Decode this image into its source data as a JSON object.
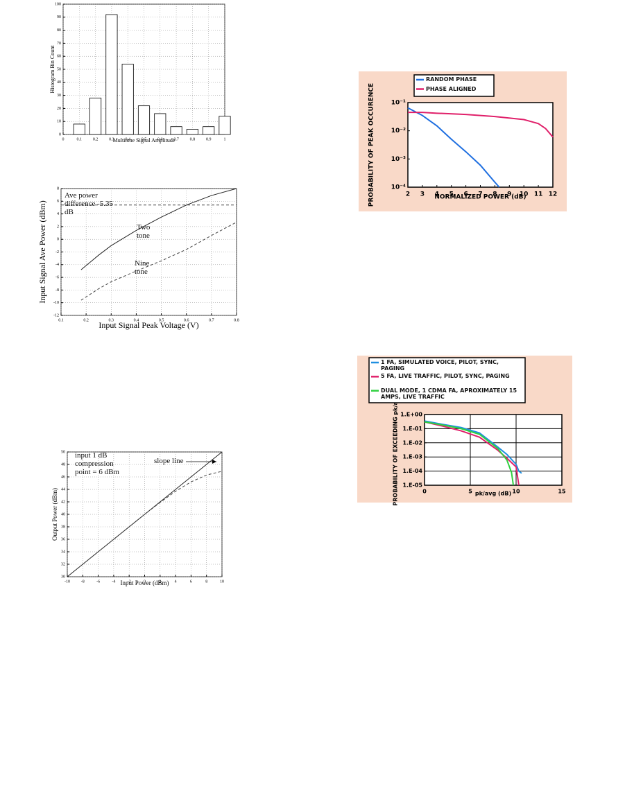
{
  "chart_data": [
    {
      "type": "bar",
      "x": [
        0.1,
        0.2,
        0.3,
        0.4,
        0.5,
        0.6,
        0.7,
        0.8,
        0.9,
        1
      ],
      "values": [
        8,
        28,
        92,
        54,
        22,
        16,
        6,
        4,
        6,
        14
      ],
      "color": "#ffffff",
      "xlim": [
        0,
        1
      ],
      "xticks": [
        0,
        0.1,
        0.2,
        0.3,
        0.4,
        0.5,
        0.6,
        0.7,
        0.8,
        0.9,
        1
      ],
      "ylim": [
        0,
        100
      ],
      "yticks": [
        0,
        10,
        20,
        30,
        40,
        50,
        60,
        70,
        80,
        90,
        100
      ],
      "x_label": "Multitone Signal Amplitude",
      "y_label": "Histogram Bin Count",
      "grid": true
    },
    {
      "type": "line",
      "xlim": [
        0.1,
        0.8
      ],
      "xticks": [
        0.1,
        0.2,
        0.3,
        0.4,
        0.5,
        0.6,
        0.7,
        0.8
      ],
      "ylim": [
        -12,
        8
      ],
      "yticks": [
        -12,
        -10,
        -8,
        -6,
        -4,
        -2,
        0,
        2,
        4,
        6,
        8
      ],
      "x_label": "Input Signal Peak Voltage (V)",
      "y_label": "Input Signal Ave Power (dBm)",
      "grid": true,
      "series": [
        {
          "color": "#222222",
          "line_style": "solid",
          "x": [
            0.18,
            0.25,
            0.3,
            0.4,
            0.5,
            0.6,
            0.7,
            0.8
          ],
          "values": [
            -4.8,
            -2.5,
            -1,
            1.4,
            3.5,
            5.4,
            6.9,
            8
          ]
        },
        {
          "color": "#444444",
          "line_style": "dashed",
          "x": [
            0.18,
            0.25,
            0.3,
            0.4,
            0.5,
            0.6,
            0.7,
            0.8
          ],
          "values": [
            -9.6,
            -7.8,
            -6.7,
            -5,
            -3.4,
            -1.6,
            0.6,
            2.7
          ]
        },
        {
          "color": "#444444",
          "line_style": "dashed",
          "x": [
            0.1,
            0.8
          ],
          "values": [
            5.4,
            5.4
          ]
        }
      ],
      "annotations": [
        "Ave power difference -5.35 dB",
        "Two tone",
        "Nine tone"
      ]
    },
    {
      "type": "line",
      "log_y": true,
      "xlim": [
        2,
        12
      ],
      "xticks": [
        2,
        3,
        4,
        5,
        6,
        7,
        8,
        9,
        10,
        11,
        12
      ],
      "ylim": [
        0.0001,
        0.1
      ],
      "yticks": [
        {
          "value": 0.0001,
          "label": "10⁻⁴"
        },
        {
          "value": 0.001,
          "label": "10⁻³"
        },
        {
          "value": 0.01,
          "label": "10⁻²"
        },
        {
          "value": 0.1,
          "label": "10⁻¹"
        }
      ],
      "x_label": "NORMALIZED POWER (dB)",
      "y_label": "PROBABILITY OF PEAK OCCURENCE",
      "grid": false,
      "legend": "top",
      "series": [
        {
          "name": "RANDOM PHASE",
          "color": "#1f6fe0",
          "line_style": "solid",
          "x": [
            2,
            3,
            4,
            5,
            6,
            7,
            8,
            8.3
          ],
          "values": [
            0.065,
            0.035,
            0.015,
            0.005,
            0.0018,
            0.0006,
            0.00015,
            0.0001
          ]
        },
        {
          "name": "PHASE ALIGNED",
          "color": "#e0206a",
          "line_style": "solid",
          "x": [
            2,
            3,
            4,
            6,
            8,
            10,
            11,
            11.5,
            12
          ],
          "values": [
            0.045,
            0.045,
            0.042,
            0.038,
            0.032,
            0.025,
            0.018,
            0.012,
            0.006
          ]
        }
      ]
    },
    {
      "type": "line",
      "log_y": true,
      "xlim": [
        0,
        15
      ],
      "xticks": [
        0,
        5,
        10,
        15
      ],
      "ylim": [
        1e-05,
        1
      ],
      "yticks": [
        {
          "value": 1e-05,
          "label": "1.E-05"
        },
        {
          "value": 0.0001,
          "label": "1.E-04"
        },
        {
          "value": 0.001,
          "label": "1.E-03"
        },
        {
          "value": 0.01,
          "label": "1.E-02"
        },
        {
          "value": 0.1,
          "label": "1.E-01"
        },
        {
          "value": 1,
          "label": "1.E+00"
        }
      ],
      "x_label": "pk/avg (dB)",
      "y_label": "PROBABILITY OF EXCEEDING pk/avg",
      "grid": true,
      "legend": "top",
      "series": [
        {
          "name": "1 FA, SIMULATED VOICE, PILOT, SYNC, PAGING",
          "color": "#1f8fe0",
          "line_style": "solid",
          "x": [
            0,
            2,
            4,
            6,
            8,
            9,
            10,
            10.3,
            10.6
          ],
          "values": [
            0.35,
            0.2,
            0.12,
            0.05,
            0.005,
            0.0015,
            0.0003,
            0.0001,
            7e-05
          ]
        },
        {
          "name": "5 FA, LIVE TRAFFIC, PILOT, SYNC, PAGING",
          "color": "#e0206a",
          "line_style": "solid",
          "x": [
            0,
            2,
            4,
            6,
            8,
            9,
            10,
            10.3
          ],
          "values": [
            0.3,
            0.15,
            0.07,
            0.025,
            0.003,
            0.0008,
            0.0002,
            1e-05
          ]
        },
        {
          "name": "DUAL MODE, 1 CDMA FA, APROXIMATELY 15 AMPS, LIVE TRAFFIC",
          "color": "#30d040",
          "line_style": "solid",
          "x": [
            0,
            2,
            4,
            6,
            8,
            9,
            9.5,
            9.7
          ],
          "values": [
            0.3,
            0.18,
            0.1,
            0.04,
            0.004,
            0.0006,
            8e-05,
            1e-05
          ]
        }
      ]
    },
    {
      "type": "line",
      "xlim": [
        -10,
        10
      ],
      "xticks": [
        -10,
        -8,
        -6,
        -4,
        -2,
        0,
        2,
        4,
        6,
        8,
        10
      ],
      "ylim": [
        30,
        50
      ],
      "yticks": [
        30,
        32,
        34,
        36,
        38,
        40,
        42,
        44,
        46,
        48,
        50
      ],
      "x_label": "Input Power (dBm)",
      "y_label": "Output Power (dBm)",
      "grid": true,
      "series": [
        {
          "color": "#222222",
          "line_style": "solid",
          "x": [
            -10,
            10
          ],
          "values": [
            30,
            50
          ]
        },
        {
          "color": "#444444",
          "line_style": "dashed",
          "x": [
            -8,
            -4,
            0,
            2,
            4,
            6,
            8,
            10
          ],
          "values": [
            32,
            36,
            40,
            41.9,
            43.7,
            45.2,
            46.3,
            46.9
          ]
        }
      ],
      "annotations": [
        "input 1 dB compression point = 6 dBm",
        "slope line"
      ]
    }
  ]
}
